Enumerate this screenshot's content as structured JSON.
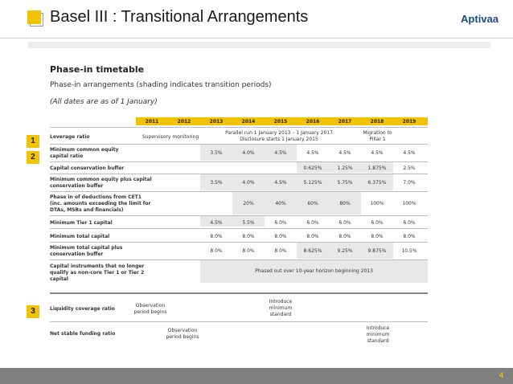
{
  "slide": {
    "title": "Basel III : Transitional Arrangements",
    "brand": "Aptivaa",
    "page_number": "4"
  },
  "content": {
    "heading": "Phase-in timetable",
    "subheading": "Phase-in arrangements (shading indicates transition periods)",
    "note": "(All dates are as of 1 January)"
  },
  "table": {
    "years": [
      "2011",
      "2012",
      "2013",
      "2014",
      "2015",
      "2016",
      "2017",
      "2018",
      "2019"
    ],
    "rows": [
      {
        "label": "Leverage ratio",
        "supervisory": "Supervisory monitoring",
        "parallel": "Parallel run 1 January 2013 – 1 January 2017\nDisclosure starts 1 January 2015",
        "migration": "Migration to\nPillar 1"
      },
      {
        "label": "Minimum common equity\ncapital ratio",
        "values": [
          "",
          "",
          "3.5%",
          "4.0%",
          "4.5%",
          "4.5%",
          "4.5%",
          "4.5%",
          "4.5%"
        ]
      },
      {
        "label": "Capital conservation buffer",
        "values": [
          "",
          "",
          "",
          "",
          "",
          "0.625%",
          "1.25%",
          "1.875%",
          "2.5%"
        ]
      },
      {
        "label": "Minimum common equity plus capital\nconservation buffer",
        "values": [
          "",
          "",
          "3.5%",
          "4.0%",
          "4.5%",
          "5.125%",
          "5.75%",
          "6.375%",
          "7.0%"
        ]
      },
      {
        "label": "Phase in of deductions from CET1\n(inc. amounts exceeding the limit for\nDTAs, MSRs and financials)",
        "values": [
          "",
          "",
          "",
          "20%",
          "40%",
          "60%",
          "80%",
          "100%",
          "100%"
        ]
      },
      {
        "label": "Minimum Tier 1 capital",
        "values": [
          "",
          "",
          "4.5%",
          "5.5%",
          "6.0%",
          "6.0%",
          "6.0%",
          "6.0%",
          "6.0%"
        ]
      },
      {
        "label": "Minimum total capital",
        "values": [
          "",
          "",
          "8.0%",
          "8.0%",
          "8.0%",
          "8.0%",
          "8.0%",
          "8.0%",
          "8.0%"
        ]
      },
      {
        "label": "Minimum total capital plus\nconservation buffer",
        "values": [
          "",
          "",
          "8.0%",
          "8.0%",
          "8.0%",
          "8.625%",
          "9.25%",
          "9.875%",
          "10.5%"
        ]
      },
      {
        "label": "Capital instruments that no longer\nqualify as non-core Tier 1 or Tier 2\ncapital",
        "phased": "Phased out over 10-year horizon beginning 2013"
      },
      {
        "label": "Liquidity coverage ratio",
        "observation": "Observation\nperiod begins",
        "introduce": "Introduce\nminimum\nstandard"
      },
      {
        "label": "Net stable funding ratio",
        "observation": "Observation\nperiod begins",
        "introduce": "Introduce\nminimum\nstandard"
      }
    ],
    "markers": [
      "1",
      "2",
      "3"
    ]
  },
  "colors": {
    "accent": "#f2c300",
    "shade": "#e8e8e8",
    "footer": "#7f7f7f",
    "brand": "#1c4a8a"
  }
}
